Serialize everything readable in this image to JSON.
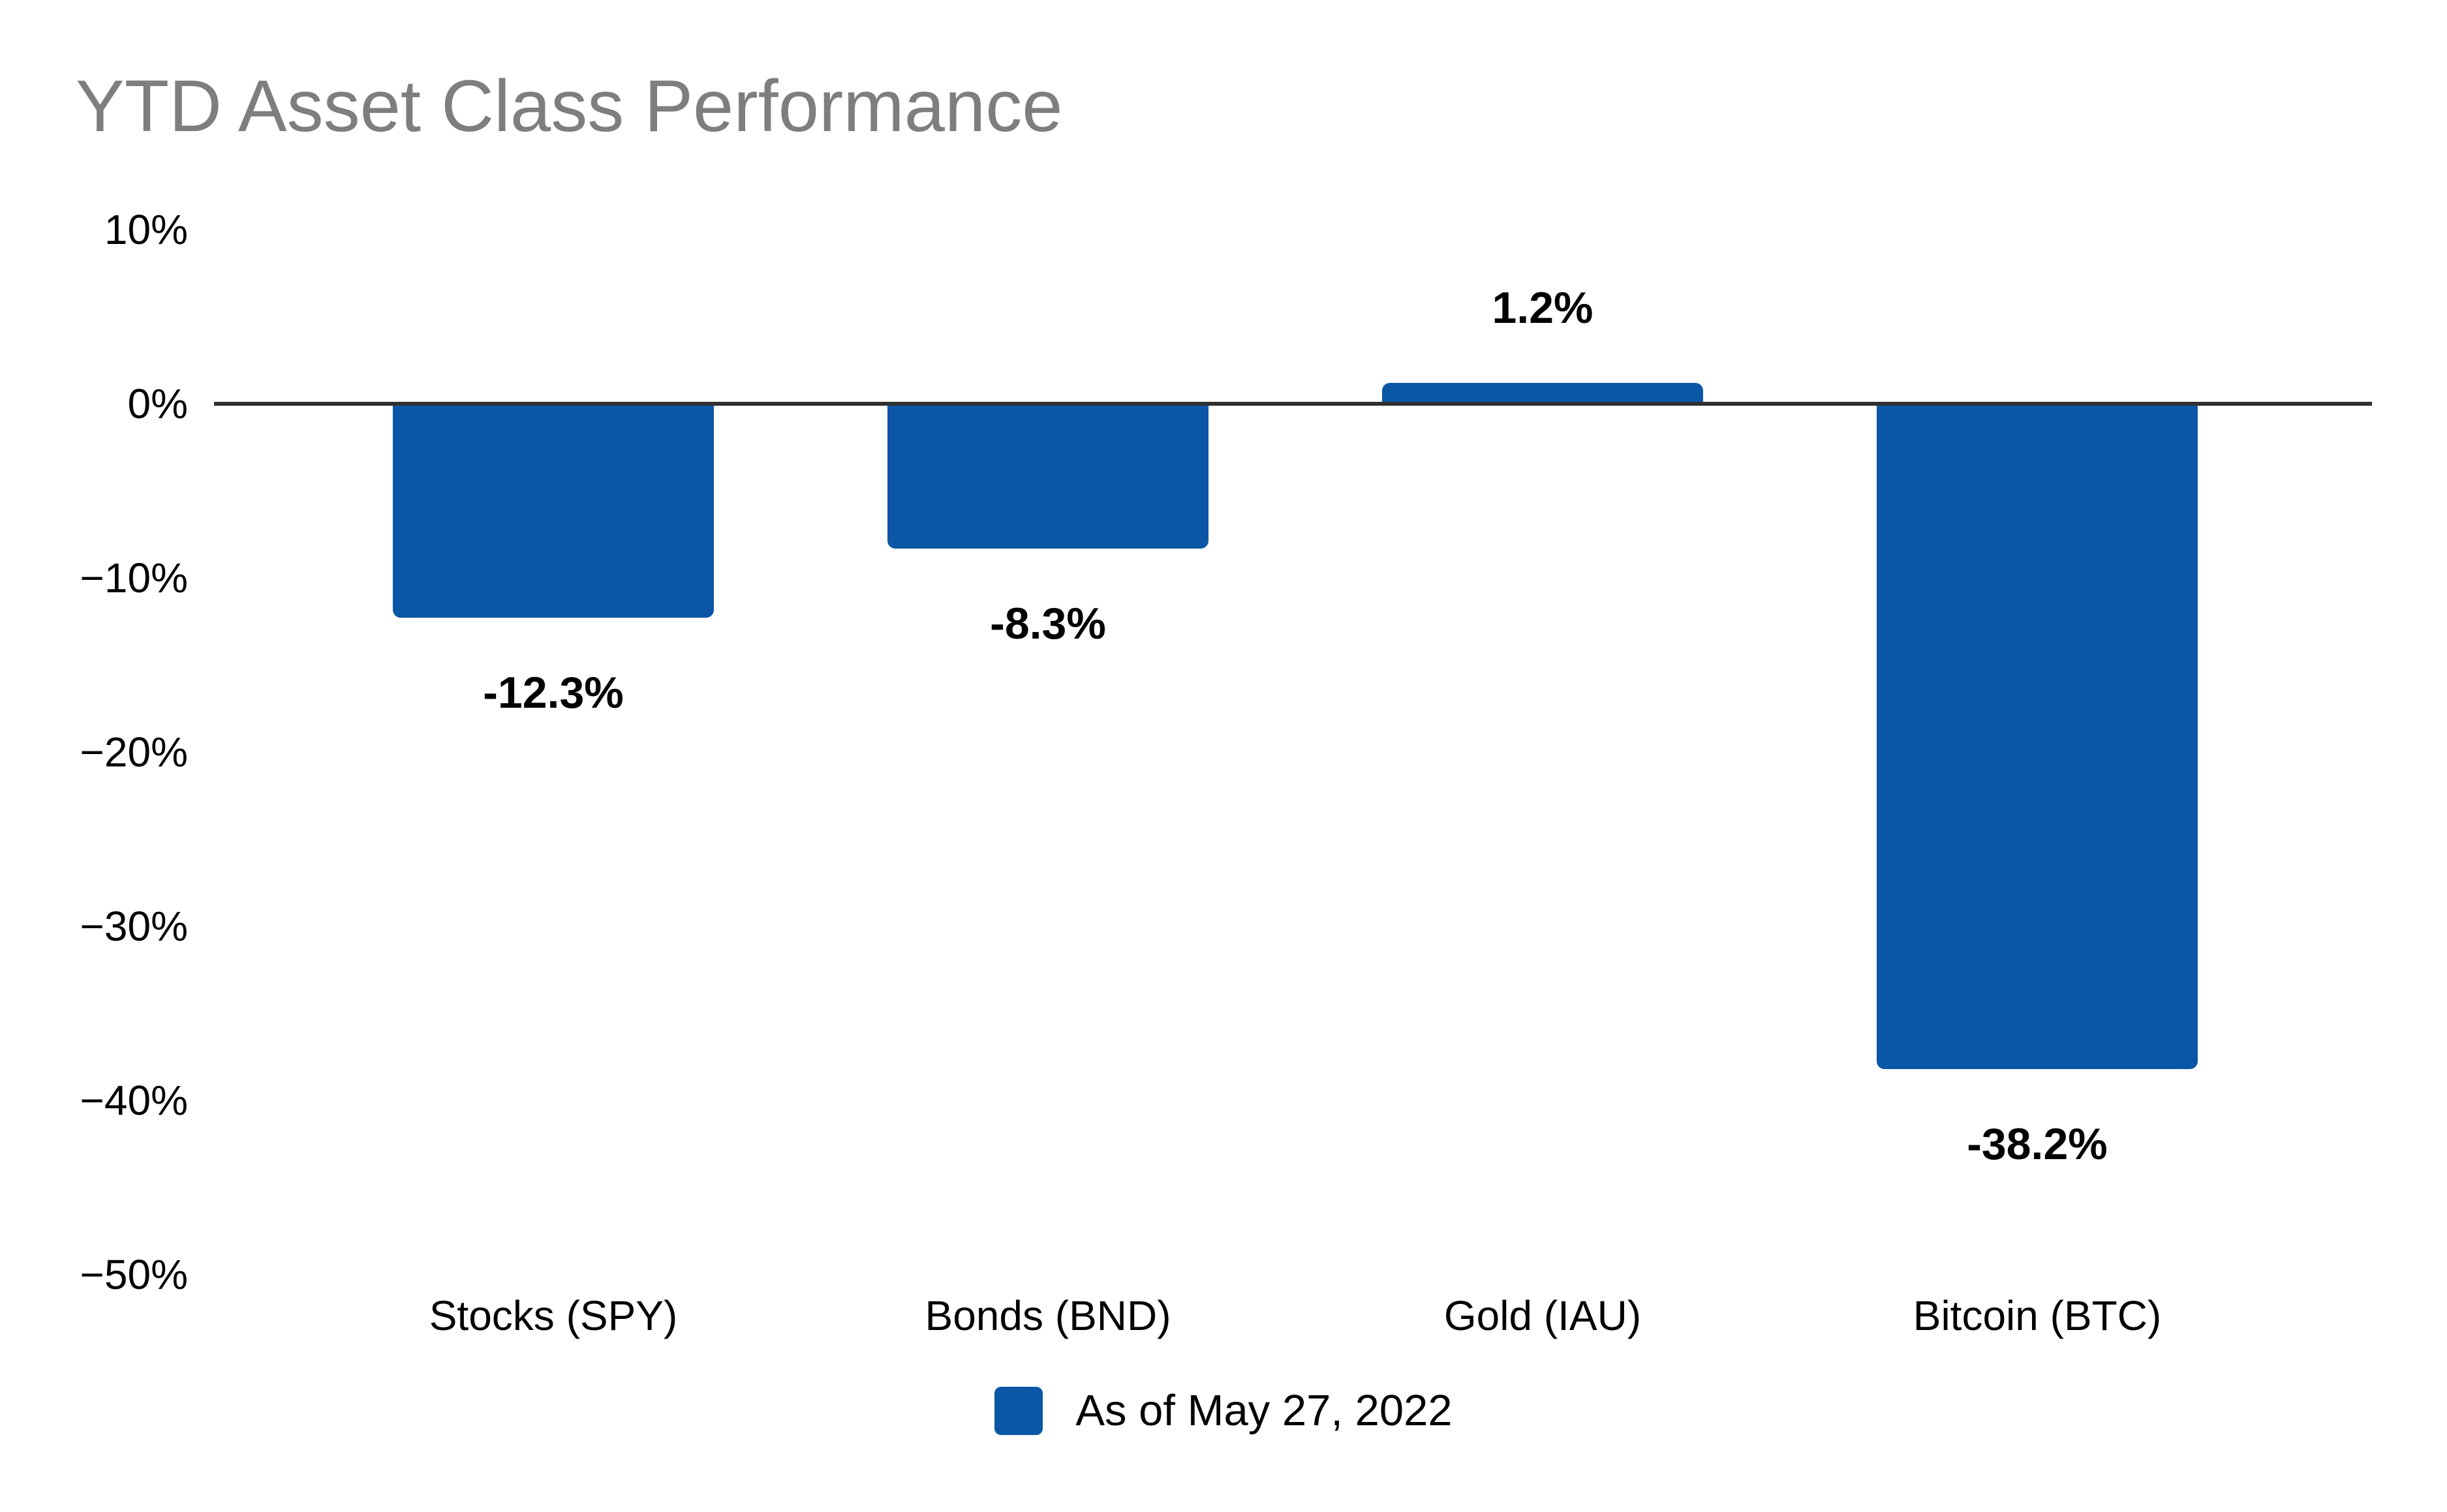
{
  "chart_data": {
    "type": "bar",
    "title": "YTD Asset Class Performance",
    "categories": [
      "Stocks (SPY)",
      "Bonds (BND)",
      "Gold (IAU)",
      "Bitcoin (BTC)"
    ],
    "values": [
      -12.3,
      -8.3,
      1.2,
      -38.2
    ],
    "value_labels": [
      "-12.3%",
      "-8.3%",
      "1.2%",
      "-38.2%"
    ],
    "y_ticks": [
      {
        "value": 10,
        "label": "10%"
      },
      {
        "value": 0,
        "label": "0%"
      },
      {
        "value": -10,
        "label": "−10%"
      },
      {
        "value": -20,
        "label": "−20%"
      },
      {
        "value": -30,
        "label": "−30%"
      },
      {
        "value": -40,
        "label": "−40%"
      },
      {
        "value": -50,
        "label": "−50%"
      }
    ],
    "ylim": [
      -50,
      10
    ],
    "grid": false,
    "xlabel": "",
    "ylabel": "",
    "legend": {
      "label": "As of May 27, 2022",
      "position": "bottom-center"
    },
    "colors": {
      "bar": "#0B57A6",
      "title": "#7E7E7E",
      "zero_line": "#303030",
      "text": "#000000",
      "background": "#FFFFFF"
    }
  }
}
